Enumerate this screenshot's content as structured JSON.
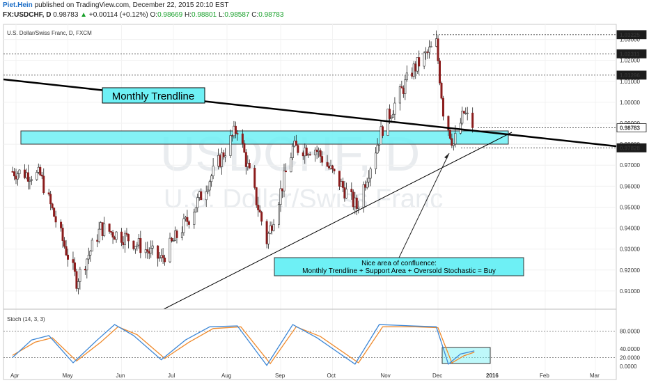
{
  "header": {
    "author": "Piet.Hein",
    "published": "published on TradingView.com, December 22, 2015 20:10 EST",
    "symbol": "FX:USDCHF, D",
    "last": "0.98783",
    "change_arrow": "▲",
    "change": "+0.00114 (+0.12%)",
    "o_label": "O:",
    "o": "0.98669",
    "h_label": "H:",
    "h": "0.98801",
    "l_label": "L:",
    "l": "0.98587",
    "c_label": "C:",
    "c": "0.98783"
  },
  "colors": {
    "up": "#18a02a",
    "candle_up": "#2a2a2a",
    "candle_down": "#8b1c1c",
    "zone": "#6ef0f5",
    "stoch_k": "#3d87d6",
    "stoch_d": "#ef8a2c",
    "label_box": "#6ef0f5"
  },
  "chart_data": {
    "type": "candlestick",
    "title": "U.S. Dollar/Swiss Franc, D, FXCM",
    "watermark_top": "USDCHF, D",
    "watermark_bottom": "U.S. Dollar/Swiss Franc",
    "x_ticks": [
      "Apr",
      "May",
      "Jun",
      "Jul",
      "Aug",
      "Sep",
      "Oct",
      "Nov",
      "Dec",
      "2016",
      "Feb",
      "Mar"
    ],
    "ylim": [
      0.902,
      1.0365
    ],
    "y_ticks": [
      "1.03000",
      "1.02000",
      "1.01000",
      "1.00000",
      "0.99000",
      "0.98000",
      "0.97000",
      "0.96000",
      "0.95000",
      "0.94000",
      "0.93000",
      "0.92000",
      "0.91000"
    ],
    "price_levels": [
      {
        "label": "1.03225",
        "value": 1.03225
      },
      {
        "label": "1.02311",
        "value": 1.02311
      },
      {
        "label": "1.01296",
        "value": 1.01296
      },
      {
        "label": "0.98783",
        "value": 0.98783
      },
      {
        "label": "0.97828",
        "value": 0.97828
      }
    ],
    "key_points": [
      {
        "date": "2015-03-30",
        "close": 0.967
      },
      {
        "date": "2015-04-15",
        "close": 0.965
      },
      {
        "date": "2015-05-06",
        "close": 0.915
      },
      {
        "date": "2015-05-20",
        "close": 0.94
      },
      {
        "date": "2015-06-05",
        "close": 0.935
      },
      {
        "date": "2015-06-24",
        "close": 0.925
      },
      {
        "date": "2015-07-10",
        "close": 0.945
      },
      {
        "date": "2015-08-07",
        "close": 0.988
      },
      {
        "date": "2015-08-24",
        "close": 0.934
      },
      {
        "date": "2015-09-08",
        "close": 0.978
      },
      {
        "date": "2015-09-21",
        "close": 0.978
      },
      {
        "date": "2015-10-15",
        "close": 0.95
      },
      {
        "date": "2015-10-30",
        "close": 0.988
      },
      {
        "date": "2015-11-16",
        "close": 1.015
      },
      {
        "date": "2015-11-30",
        "close": 1.028
      },
      {
        "date": "2015-12-04",
        "close": 0.996
      },
      {
        "date": "2015-12-10",
        "close": 0.98
      },
      {
        "date": "2015-12-16",
        "close": 0.995
      },
      {
        "date": "2015-12-22",
        "close": 0.98783
      }
    ],
    "annotations": {
      "trendline_label": "Monthly Trendline",
      "confluence_line1": "Nice area of confluence:",
      "confluence_line2": "Monthly Trendline + Support Area + Oversold Stochastic = Buy"
    },
    "stochastic": {
      "label": "Stoch (14, 3, 3)",
      "ylim": [
        0,
        100
      ],
      "y_ticks": [
        "80.0000",
        "40.0000",
        "20.0000",
        "0.0000"
      ],
      "levels": [
        80,
        20
      ],
      "k": [
        {
          "date": "2015-03-30",
          "value": 20
        },
        {
          "date": "2015-04-10",
          "value": 60
        },
        {
          "date": "2015-04-20",
          "value": 70
        },
        {
          "date": "2015-05-04",
          "value": 8
        },
        {
          "date": "2015-05-18",
          "value": 60
        },
        {
          "date": "2015-05-28",
          "value": 95
        },
        {
          "date": "2015-06-08",
          "value": 70
        },
        {
          "date": "2015-06-24",
          "value": 15
        },
        {
          "date": "2015-07-08",
          "value": 60
        },
        {
          "date": "2015-07-22",
          "value": 90
        },
        {
          "date": "2015-08-07",
          "value": 92
        },
        {
          "date": "2015-08-24",
          "value": 2
        },
        {
          "date": "2015-09-08",
          "value": 95
        },
        {
          "date": "2015-09-22",
          "value": 65
        },
        {
          "date": "2015-10-14",
          "value": 5
        },
        {
          "date": "2015-10-28",
          "value": 95
        },
        {
          "date": "2015-11-16",
          "value": 92
        },
        {
          "date": "2015-11-30",
          "value": 90
        },
        {
          "date": "2015-12-07",
          "value": 5
        },
        {
          "date": "2015-12-14",
          "value": 28
        },
        {
          "date": "2015-12-22",
          "value": 35
        }
      ],
      "d": [
        {
          "date": "2015-03-30",
          "value": 25
        },
        {
          "date": "2015-04-12",
          "value": 55
        },
        {
          "date": "2015-04-22",
          "value": 65
        },
        {
          "date": "2015-05-06",
          "value": 12
        },
        {
          "date": "2015-05-20",
          "value": 55
        },
        {
          "date": "2015-05-30",
          "value": 90
        },
        {
          "date": "2015-06-10",
          "value": 72
        },
        {
          "date": "2015-06-26",
          "value": 18
        },
        {
          "date": "2015-07-10",
          "value": 55
        },
        {
          "date": "2015-07-24",
          "value": 86
        },
        {
          "date": "2015-08-09",
          "value": 90
        },
        {
          "date": "2015-08-26",
          "value": 6
        },
        {
          "date": "2015-09-10",
          "value": 90
        },
        {
          "date": "2015-09-24",
          "value": 68
        },
        {
          "date": "2015-10-16",
          "value": 8
        },
        {
          "date": "2015-10-30",
          "value": 90
        },
        {
          "date": "2015-11-18",
          "value": 90
        },
        {
          "date": "2015-12-01",
          "value": 88
        },
        {
          "date": "2015-12-09",
          "value": 8
        },
        {
          "date": "2015-12-16",
          "value": 24
        },
        {
          "date": "2015-12-22",
          "value": 32
        }
      ]
    }
  }
}
